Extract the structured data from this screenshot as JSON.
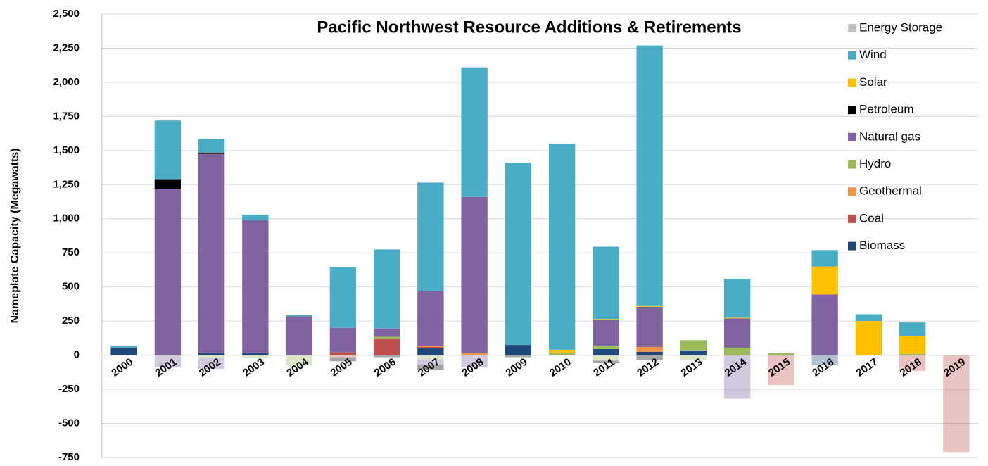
{
  "chart_data": {
    "type": "bar",
    "stacked": true,
    "title": "Pacific Northwest Resource Additions & Retirements",
    "y_label": "Nameplate Capacity (Megawatts)",
    "categories": [
      "2000",
      "2001",
      "2002",
      "2003",
      "2004",
      "2005",
      "2006",
      "2007",
      "2008",
      "2009",
      "2010",
      "2011",
      "2012",
      "2013",
      "2014",
      "2015",
      "2016",
      "2017",
      "2018",
      "2019"
    ],
    "ylim": [
      -750,
      2500
    ],
    "yticks": [
      {
        "value": 2500,
        "label": "2,500"
      },
      {
        "value": 2250,
        "label": "2,250"
      },
      {
        "value": 2000,
        "label": "2,000"
      },
      {
        "value": 1750,
        "label": "1,750"
      },
      {
        "value": 1500,
        "label": "1,500"
      },
      {
        "value": 1250,
        "label": "1,250"
      },
      {
        "value": 1000,
        "label": "1,000"
      },
      750,
      500,
      250,
      0,
      -250,
      -500,
      -750
    ],
    "grid": true,
    "legend_position": "right",
    "series": [
      {
        "name": "Biomass",
        "color": "#1f497d",
        "values": [
          50,
          0,
          15,
          15,
          0,
          0,
          0,
          50,
          0,
          75,
          0,
          45,
          25,
          35,
          0,
          0,
          0,
          0,
          0,
          0
        ],
        "retirements": [
          0,
          0,
          0,
          0,
          0,
          0,
          0,
          0,
          0,
          0,
          0,
          0,
          0,
          0,
          0,
          0,
          -75,
          0,
          0,
          0
        ]
      },
      {
        "name": "Coal",
        "color": "#c0504d",
        "values": [
          0,
          0,
          0,
          0,
          0,
          20,
          120,
          10,
          0,
          0,
          0,
          0,
          0,
          0,
          0,
          0,
          0,
          0,
          0,
          0
        ],
        "retirements": [
          0,
          0,
          0,
          0,
          0,
          -15,
          0,
          0,
          0,
          0,
          0,
          0,
          0,
          0,
          0,
          -220,
          0,
          0,
          -115,
          -710
        ]
      },
      {
        "name": "Geothermal",
        "color": "#f79646",
        "values": [
          0,
          0,
          0,
          0,
          0,
          0,
          0,
          5,
          15,
          0,
          0,
          0,
          35,
          0,
          0,
          0,
          0,
          0,
          0,
          0
        ],
        "retirements": [
          0,
          0,
          0,
          0,
          0,
          0,
          0,
          0,
          0,
          0,
          0,
          0,
          0,
          0,
          0,
          0,
          0,
          0,
          0,
          0
        ]
      },
      {
        "name": "Hydro",
        "color": "#9bbb59",
        "values": [
          0,
          0,
          0,
          0,
          0,
          0,
          15,
          0,
          0,
          0,
          20,
          25,
          0,
          75,
          55,
          15,
          0,
          0,
          10,
          0
        ],
        "retirements": [
          0,
          0,
          -20,
          -20,
          -75,
          0,
          0,
          -30,
          0,
          0,
          0,
          -40,
          0,
          -35,
          0,
          0,
          0,
          0,
          0,
          0
        ]
      },
      {
        "name": "Natural gas",
        "color": "#8064a2",
        "values": [
          5,
          1220,
          1460,
          975,
          285,
          180,
          60,
          405,
          1145,
          0,
          0,
          190,
          295,
          0,
          215,
          0,
          445,
          0,
          0,
          0
        ],
        "retirements": [
          0,
          -90,
          -80,
          0,
          0,
          0,
          0,
          -40,
          -90,
          0,
          0,
          0,
          0,
          0,
          -320,
          0,
          0,
          0,
          0,
          0
        ]
      },
      {
        "name": "Petroleum",
        "color": "#000000",
        "values": [
          0,
          70,
          10,
          0,
          0,
          0,
          0,
          0,
          0,
          0,
          0,
          0,
          0,
          0,
          0,
          0,
          0,
          0,
          0,
          0
        ],
        "retirements": [
          0,
          0,
          0,
          0,
          0,
          -30,
          -15,
          -35,
          0,
          -15,
          0,
          -15,
          -35,
          0,
          0,
          0,
          0,
          0,
          0,
          0
        ]
      },
      {
        "name": "Solar",
        "color": "#ffc000",
        "values": [
          0,
          0,
          0,
          0,
          0,
          0,
          0,
          0,
          0,
          0,
          20,
          5,
          10,
          0,
          5,
          0,
          205,
          250,
          130,
          0
        ],
        "retirements": [
          0,
          0,
          0,
          0,
          0,
          0,
          0,
          0,
          0,
          0,
          0,
          0,
          0,
          0,
          0,
          0,
          0,
          0,
          0,
          0
        ]
      },
      {
        "name": "Wind",
        "color": "#4bacc6",
        "values": [
          15,
          430,
          100,
          40,
          10,
          445,
          580,
          795,
          950,
          1335,
          1510,
          530,
          1905,
          0,
          285,
          0,
          120,
          50,
          100,
          0
        ],
        "retirements": [
          0,
          0,
          0,
          0,
          0,
          0,
          0,
          0,
          0,
          0,
          0,
          0,
          0,
          0,
          0,
          0,
          0,
          0,
          0,
          0
        ]
      },
      {
        "name": "Energy Storage",
        "color": "#bfbfbf",
        "values": [
          0,
          0,
          0,
          0,
          0,
          0,
          0,
          0,
          0,
          0,
          0,
          0,
          0,
          0,
          0,
          0,
          0,
          0,
          5,
          0
        ],
        "retirements": [
          0,
          0,
          0,
          0,
          0,
          0,
          0,
          0,
          0,
          0,
          0,
          0,
          0,
          0,
          0,
          0,
          0,
          0,
          0,
          0
        ]
      }
    ]
  }
}
